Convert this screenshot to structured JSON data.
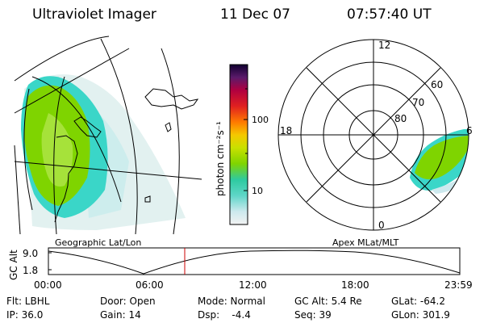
{
  "header": {
    "title": "Ultraviolet Imager",
    "date": "11 Dec 07",
    "time": "07:57:40 UT"
  },
  "panels": {
    "geographic_label": "Geographic Lat/Lon",
    "apex_label": "Apex MLat/MLT"
  },
  "colorbar": {
    "axis_label": "photon cm⁻²s⁻¹",
    "ticks": [
      "100",
      "10"
    ]
  },
  "polar": {
    "mlt_labels": [
      "12",
      "18",
      "6",
      "0"
    ],
    "mlat_labels": [
      "60",
      "70",
      "80"
    ]
  },
  "timeline": {
    "y_label": "GC Alt",
    "y_ticks": [
      "9.0",
      "1.8"
    ],
    "x_ticks": [
      "00:00",
      "06:00",
      "12:00",
      "18:00",
      "23:59"
    ],
    "marker_time": "07:57:40"
  },
  "info": {
    "row1": {
      "flt": "Flt: LBHL",
      "door": "Door: Open",
      "mode": "Mode: Normal",
      "gc_alt": "GC Alt: 5.4 Re",
      "glat": "GLat: -64.2"
    },
    "row2": {
      "ip": "IP: 36.0",
      "gain": "Gain: 14",
      "dsp": "Dsp:    -4.4",
      "seq": "Seq: 39",
      "glon": "GLon: 301.9"
    }
  },
  "colors": {
    "marker": "#cc0000",
    "aurora_green": "#7fd400",
    "aurora_cyan": "#3ad6c8"
  }
}
